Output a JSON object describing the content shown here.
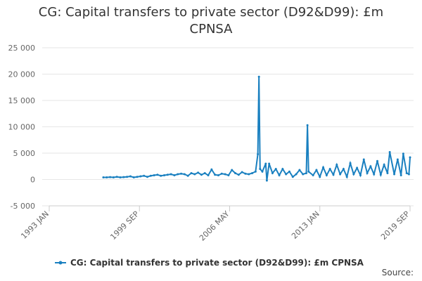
{
  "chart_data": {
    "type": "line",
    "title": "CG: Capital transfers to private sector (D92&D99): £m CPNSA",
    "source": "Source:",
    "grid": true,
    "legend": "bottom",
    "xlim": [
      "1993 JAN",
      "2019 SEP"
    ],
    "xticks": [
      "1993 JAN",
      "1999 SEP",
      "2006 MAY",
      "2013 JAN",
      "2019 SEP"
    ],
    "ylim": [
      -5000,
      25000
    ],
    "yticks": [
      {
        "value": -5000,
        "label": "-5 000"
      },
      0,
      {
        "value": 5000,
        "label": "5 000"
      },
      {
        "value": 10000,
        "label": "10 000"
      },
      {
        "value": 15000,
        "label": "15 000"
      },
      {
        "value": 20000,
        "label": "20 000"
      },
      {
        "value": 25000,
        "label": "25 000"
      }
    ],
    "x": [
      "1997 JAN",
      "1997 APR",
      "1997 JUL",
      "1997 OCT",
      "1998 JAN",
      "1998 APR",
      "1998 JUL",
      "1998 OCT",
      "1999 JAN",
      "1999 APR",
      "1999 JUL",
      "1999 OCT",
      "2000 JAN",
      "2000 APR",
      "2000 JUL",
      "2000 OCT",
      "2001 JAN",
      "2001 APR",
      "2001 JUL",
      "2001 OCT",
      "2002 JAN",
      "2002 APR",
      "2002 JUL",
      "2002 OCT",
      "2003 JAN",
      "2003 APR",
      "2003 JUL",
      "2003 OCT",
      "2004 JAN",
      "2004 APR",
      "2004 JUL",
      "2004 OCT",
      "2005 JAN",
      "2005 APR",
      "2005 JUL",
      "2005 OCT",
      "2006 JAN",
      "2006 APR",
      "2006 JUL",
      "2006 OCT",
      "2007 JAN",
      "2007 APR",
      "2007 JUL",
      "2007 OCT",
      "2008 JAN",
      "2008 APR",
      "2008 JUN",
      "2008 JUL",
      "2008 AUG",
      "2008 OCT",
      "2009 JAN",
      "2009 FEB",
      "2009 APR",
      "2009 JUL",
      "2009 OCT",
      "2010 JAN",
      "2010 APR",
      "2010 JUL",
      "2010 OCT",
      "2011 JAN",
      "2011 APR",
      "2011 JUL",
      "2011 OCT",
      "2012 JAN",
      "2012 FEB",
      "2012 MAR",
      "2012 JUL",
      "2012 OCT",
      "2013 JAN",
      "2013 APR",
      "2013 JUL",
      "2013 OCT",
      "2014 JAN",
      "2014 APR",
      "2014 JUL",
      "2014 OCT",
      "2015 JAN",
      "2015 APR",
      "2015 JUL",
      "2015 OCT",
      "2016 JAN",
      "2016 APR",
      "2016 JUL",
      "2016 OCT",
      "2017 JAN",
      "2017 APR",
      "2017 JUL",
      "2017 OCT",
      "2018 JAN",
      "2018 MAR",
      "2018 JUL",
      "2018 OCT",
      "2019 JAN",
      "2019 MAR",
      "2019 JUN",
      "2019 AUG",
      "2019 SEP"
    ],
    "series": [
      {
        "name": "CG: Capital transfers to private sector (D92&D99): £m CPNSA",
        "color": "#1a80c0",
        "values": [
          400,
          400,
          450,
          400,
          500,
          400,
          450,
          500,
          600,
          400,
          500,
          600,
          700,
          500,
          700,
          800,
          900,
          700,
          800,
          900,
          1000,
          800,
          1000,
          1100,
          1000,
          700,
          1200,
          1000,
          1300,
          900,
          1200,
          800,
          1900,
          900,
          800,
          1100,
          1000,
          800,
          1800,
          1200,
          900,
          1400,
          1100,
          1000,
          1200,
          1500,
          4800,
          19500,
          2000,
          1500,
          3000,
          -200,
          3000,
          1200,
          2000,
          800,
          2000,
          1000,
          1500,
          500,
          1000,
          1800,
          1000,
          1200,
          10300,
          1500,
          800,
          1800,
          500,
          2300,
          800,
          2000,
          900,
          2800,
          1000,
          2000,
          500,
          3100,
          1000,
          2200,
          800,
          3800,
          1200,
          2500,
          1000,
          3500,
          900,
          2800,
          1200,
          5200,
          1000,
          3800,
          800,
          4900,
          1200,
          1000,
          4200
        ]
      }
    ]
  }
}
